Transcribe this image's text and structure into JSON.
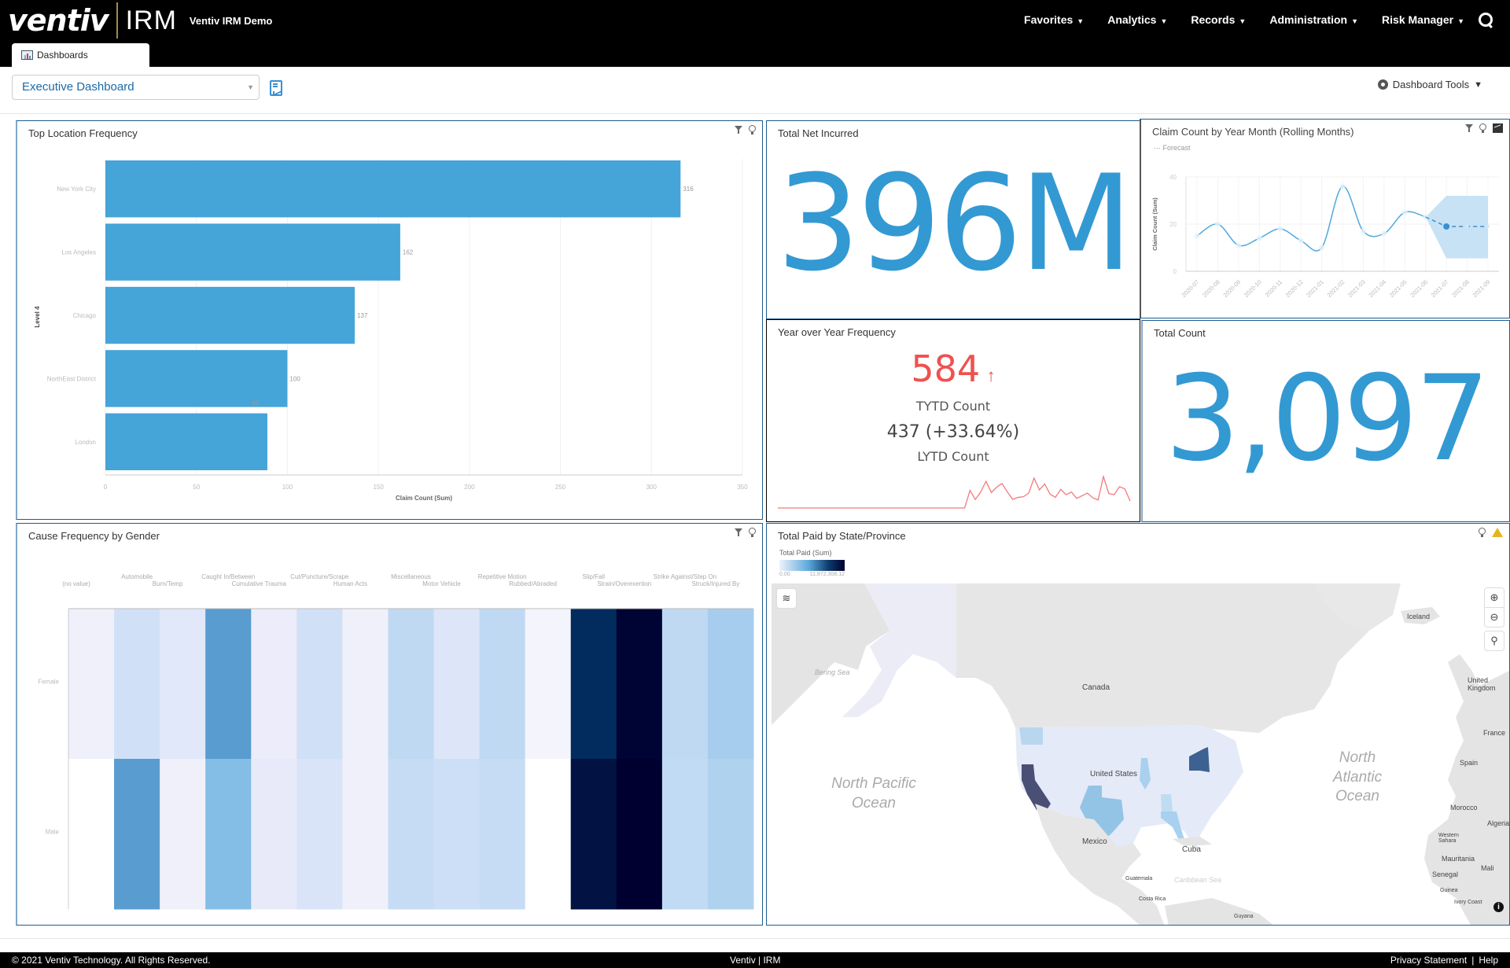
{
  "app": {
    "logo_brand": "ventiv",
    "logo_product": "IRM",
    "instance_name": "Ventiv IRM Demo"
  },
  "nav": {
    "items": [
      {
        "label": "Favorites"
      },
      {
        "label": "Analytics"
      },
      {
        "label": "Records"
      },
      {
        "label": "Administration"
      },
      {
        "label": "Risk Manager"
      }
    ],
    "search_icon": "search-icon"
  },
  "tabs": [
    {
      "label": "Dashboards",
      "icon": "dashboard-icon",
      "active": true
    }
  ],
  "toolbar": {
    "dashboard_selected": "Executive Dashboard",
    "dashboard_tools_label": "Dashboard Tools"
  },
  "panels": {
    "top_location": {
      "title": "Top Location Frequency"
    },
    "net_incurred": {
      "title": "Total Net Incurred",
      "value": "396M"
    },
    "claim_count_month": {
      "title": "Claim Count by Year Month (Rolling Months)",
      "legend_forecast": "Forecast"
    },
    "yoy": {
      "title": "Year over Year Frequency",
      "tytd_value": "584",
      "tytd_arrow": "↑",
      "tytd_label": "TYTD Count",
      "lytd_value": "437 (+33.64%)",
      "lytd_label": "LYTD Count",
      "color": "#f05050"
    },
    "total_count": {
      "title": "Total Count",
      "value": "3,097"
    },
    "cause_gender": {
      "title": "Cause Frequency by Gender"
    },
    "paid_state": {
      "title": "Total Paid by State/Province",
      "legend_title": "Total Paid (Sum)",
      "legend_min": "0.00",
      "legend_max": "11,872,308.12",
      "labels": {
        "canada": "Canada",
        "united_states": "United States",
        "mexico": "Mexico",
        "cuba": "Cuba",
        "guatemala": "Guatemala",
        "costa_rica": "Costa Rica",
        "guyana": "Guyana",
        "bering_sea": "Bering Sea",
        "caribbean_sea": "Caribbean Sea",
        "north_pacific": "North Pacific Ocean",
        "north_atlantic": "North Atlantic Ocean",
        "iceland": "Iceland",
        "uk": "United Kingdom",
        "france": "France",
        "spain": "Spain",
        "morocco": "Morocco",
        "algeria": "Algeria",
        "western_sahara": "Western Sahara",
        "mauritania": "Mauritania",
        "mali": "Mali",
        "senegal": "Senegal",
        "guinea": "Guinea",
        "ivory_coast": "Ivory Coast"
      }
    }
  },
  "chart_data": [
    {
      "id": "top_location",
      "type": "bar",
      "orientation": "horizontal",
      "title": "Top Location Frequency",
      "categories": [
        "New York City",
        "Los Angeles",
        "Chicago",
        "NorthEast District",
        "London"
      ],
      "values": [
        316,
        162,
        137,
        100,
        89
      ],
      "xlabel": "Claim Count (Sum)",
      "ylabel": "Level 4",
      "xlim": [
        0,
        350
      ],
      "xticks": [
        0,
        50,
        100,
        150,
        200,
        250,
        300,
        350
      ],
      "color": "#45a4d8",
      "grid": true
    },
    {
      "id": "claim_count_month",
      "type": "line",
      "title": "Claim Count by Year Month (Rolling Months)",
      "x": [
        "2020-07",
        "2020-08",
        "2020-09",
        "2020-10",
        "2020-11",
        "2020-12",
        "2021-01",
        "2021-02",
        "2021-03",
        "2021-04",
        "2021-05",
        "2021-06",
        "2021-07",
        "2021-08",
        "2021-09"
      ],
      "series": [
        {
          "name": "Claim Count",
          "values": [
            15,
            20,
            11,
            14,
            18,
            13,
            10,
            36,
            17,
            16,
            25,
            23,
            null,
            null,
            null
          ]
        },
        {
          "name": "Forecast",
          "values": [
            null,
            null,
            null,
            null,
            null,
            null,
            null,
            null,
            null,
            null,
            null,
            23,
            19,
            19,
            19
          ],
          "band_low": [
            null,
            null,
            null,
            null,
            null,
            null,
            null,
            null,
            null,
            null,
            null,
            23,
            5.5,
            5.5,
            5.5
          ],
          "band_high": [
            null,
            null,
            null,
            null,
            null,
            null,
            null,
            null,
            null,
            null,
            null,
            23,
            32,
            32,
            32
          ]
        }
      ],
      "ylabel": "Claim Count (Sum)",
      "ylim": [
        0,
        40
      ],
      "yticks": [
        0,
        20,
        40
      ],
      "legend": "top-left",
      "color": "#4ea8dc"
    },
    {
      "id": "yoy_sparkline",
      "type": "line",
      "values": [
        0,
        0,
        0,
        0,
        0,
        0,
        0,
        0,
        0,
        0,
        0,
        0,
        0,
        0,
        0,
        0,
        0,
        0,
        0,
        0,
        0,
        0,
        0,
        0,
        0,
        0,
        0,
        0,
        0,
        0,
        0,
        0,
        0,
        0,
        0,
        0,
        3.3,
        1.6,
        3.0,
        5.0,
        2.9,
        3.9,
        4.6,
        3.0,
        1.6,
        2.0,
        2.1,
        2.8,
        5.6,
        3.4,
        4.5,
        2.6,
        2.0,
        3.5,
        2.5,
        3.0,
        1.8,
        2.3,
        2.8,
        1.9,
        1.5,
        5.9,
        2.7,
        2.5,
        4.0,
        3.6,
        1.3
      ],
      "color": "#f47a7a"
    },
    {
      "id": "cause_gender",
      "type": "heatmap",
      "title": "Cause Frequency by Gender",
      "x": [
        "(no value)",
        "Automobile",
        "Burn/Temp",
        "Caught In/Between",
        "Cumulative Trauma",
        "Cut/Puncture/Scrape",
        "Human Acts",
        "Miscellaneous",
        "Motor Vehicle",
        "Repetitive Motion",
        "Rubbed/Abraded",
        "Slip/Fall",
        "Strain/Overexertion",
        "Strike Against/Step On",
        "Struck/Injured By"
      ],
      "y": [
        "Female",
        "Male"
      ],
      "values": [
        [
          0.04,
          0.18,
          0.1,
          0.55,
          0.05,
          0.18,
          0.04,
          0.28,
          0.12,
          0.28,
          0.03,
          0.88,
          0.99,
          0.28,
          0.38
        ],
        [
          0.0,
          0.55,
          0.04,
          0.45,
          0.07,
          0.14,
          0.04,
          0.24,
          0.2,
          0.24,
          0.0,
          0.95,
          1.0,
          0.26,
          0.36
        ]
      ],
      "value_scale": "relative (0-1)"
    },
    {
      "id": "paid_state",
      "type": "heatmap",
      "subtype": "choropleth",
      "title": "Total Paid by State/Province",
      "legend_title": "Total Paid (Sum)",
      "range": [
        0,
        11872308.12
      ],
      "highlighted_regions": [
        {
          "name": "California",
          "level": "highest"
        },
        {
          "name": "New York",
          "level": "high"
        },
        {
          "name": "Texas",
          "level": "medium"
        },
        {
          "name": "Florida",
          "level": "medium-low"
        },
        {
          "name": "Illinois",
          "level": "medium-low"
        },
        {
          "name": "Washington",
          "level": "medium-low"
        }
      ]
    }
  ],
  "footer": {
    "copyright": "© 2021 Ventiv Technology. All Rights Reserved.",
    "center": "Ventiv | IRM",
    "privacy": "Privacy Statement",
    "separator": "|",
    "help": "Help"
  }
}
